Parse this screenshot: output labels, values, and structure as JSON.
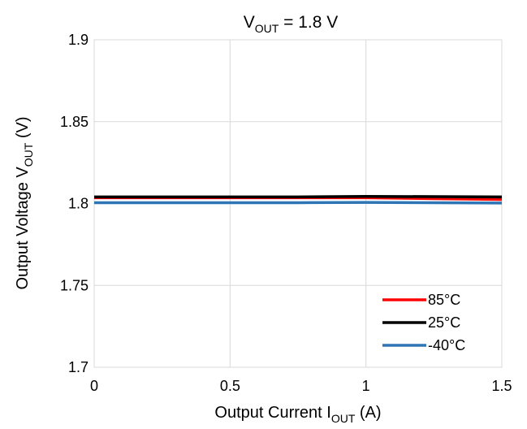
{
  "chart_data": {
    "type": "line",
    "title": {
      "main": "V",
      "sub": "OUT",
      "rest": " = 1.8 V"
    },
    "xlabel": {
      "main": "Output Current I",
      "sub": "OUT",
      "rest": " (A)"
    },
    "ylabel": {
      "main": "Output Voltage V",
      "sub": "OUT",
      "rest": " (V)"
    },
    "xlim": [
      0,
      1.5
    ],
    "ylim": [
      1.7,
      1.9
    ],
    "x_ticks": [
      "0",
      "0.5",
      "1",
      "1.5"
    ],
    "y_ticks": [
      "1.7",
      "1.75",
      "1.8",
      "1.85",
      "1.9"
    ],
    "grid": "on",
    "legend_position": "bottom-right",
    "series": [
      {
        "name": "85°C",
        "color": "#ff0000",
        "x": [
          0,
          0.25,
          0.5,
          0.75,
          1.0,
          1.25,
          1.5
        ],
        "y": [
          1.8035,
          1.8035,
          1.8035,
          1.8035,
          1.8035,
          1.803,
          1.8025
        ]
      },
      {
        "name": "25°C",
        "color": "#000000",
        "x": [
          0,
          0.25,
          0.5,
          0.75,
          1.0,
          1.25,
          1.5
        ],
        "y": [
          1.804,
          1.804,
          1.804,
          1.804,
          1.8043,
          1.8042,
          1.804
        ]
      },
      {
        "name": "-40°C",
        "color": "#2e75b6",
        "x": [
          0,
          0.25,
          0.5,
          0.75,
          1.0,
          1.25,
          1.5
        ],
        "y": [
          1.8005,
          1.8005,
          1.8005,
          1.8005,
          1.8007,
          1.8005,
          1.8003
        ]
      }
    ]
  }
}
